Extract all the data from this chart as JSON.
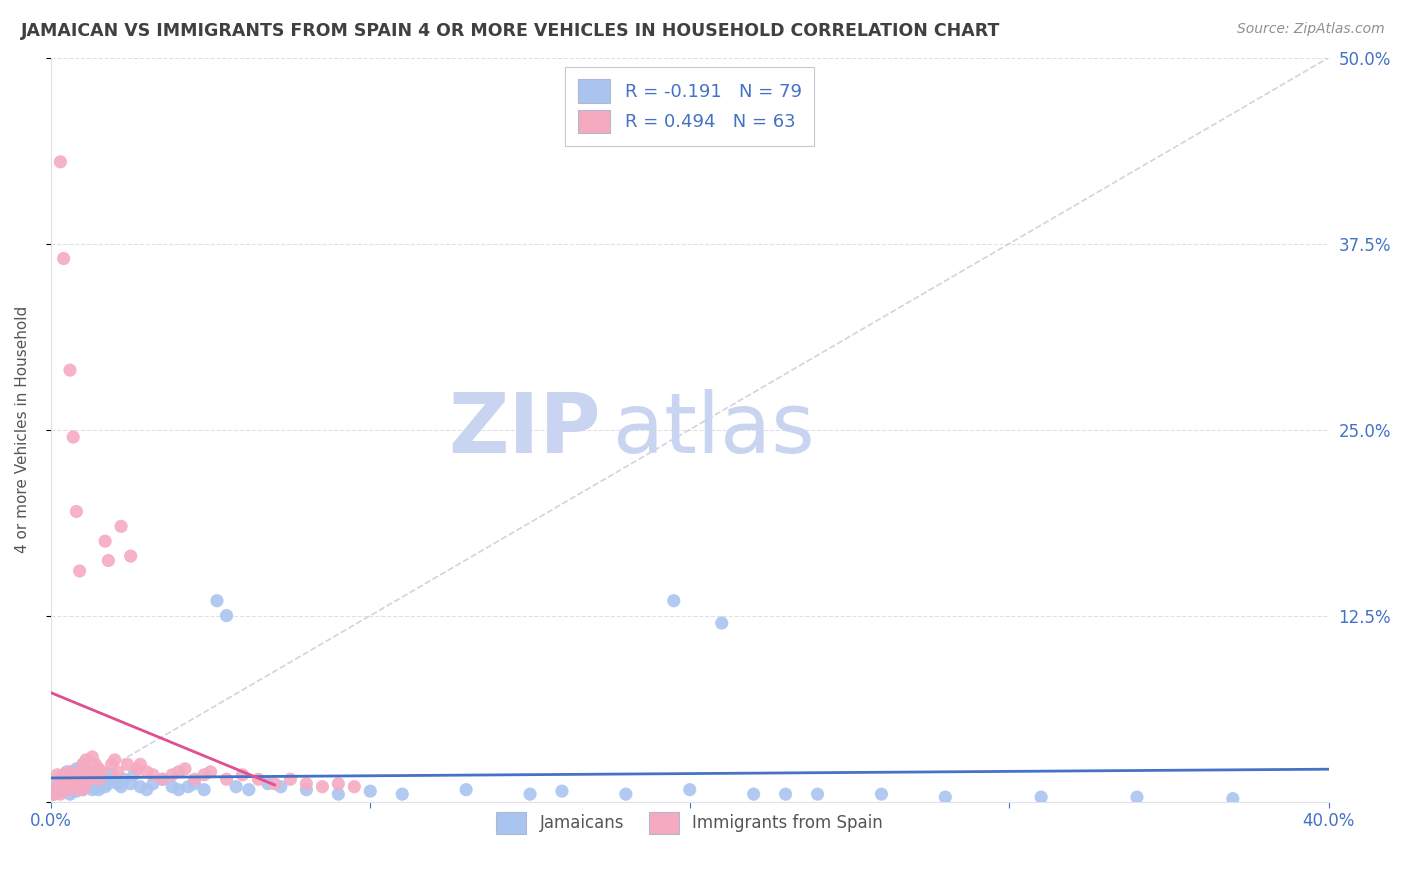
{
  "title": "JAMAICAN VS IMMIGRANTS FROM SPAIN 4 OR MORE VEHICLES IN HOUSEHOLD CORRELATION CHART",
  "source": "Source: ZipAtlas.com",
  "ylabel": "4 or more Vehicles in Household",
  "xlim": [
    0.0,
    0.4
  ],
  "ylim": [
    0.0,
    0.5
  ],
  "x_ticks": [
    0.0,
    0.1,
    0.2,
    0.3,
    0.4
  ],
  "x_tick_labels": [
    "0.0%",
    "",
    "",
    "",
    "40.0%"
  ],
  "y_ticks": [
    0.0,
    0.125,
    0.25,
    0.375,
    0.5
  ],
  "y_tick_labels": [
    "",
    "12.5%",
    "25.0%",
    "37.5%",
    "50.0%"
  ],
  "legend_r1": "R = -0.191",
  "legend_n1": "N = 79",
  "legend_r2": "R = 0.494",
  "legend_n2": "N = 63",
  "legend_label1": "Jamaicans",
  "legend_label2": "Immigrants from Spain",
  "blue_color": "#aac4f0",
  "pink_color": "#f5aac0",
  "blue_line_color": "#4472c4",
  "pink_line_color": "#e05090",
  "diag_color": "#c8c8d8",
  "title_color": "#404040",
  "source_color": "#909090",
  "axis_color": "#4472c4",
  "grid_color": "#e0e0e8",
  "watermark_zip_color": "#c8d4f0",
  "watermark_atlas_color": "#c8d4f0",
  "jamaicans_x": [
    0.001,
    0.002,
    0.002,
    0.003,
    0.003,
    0.004,
    0.004,
    0.004,
    0.005,
    0.005,
    0.005,
    0.006,
    0.006,
    0.006,
    0.007,
    0.007,
    0.007,
    0.008,
    0.008,
    0.008,
    0.009,
    0.009,
    0.01,
    0.01,
    0.01,
    0.011,
    0.011,
    0.012,
    0.012,
    0.013,
    0.013,
    0.014,
    0.014,
    0.015,
    0.015,
    0.016,
    0.017,
    0.018,
    0.019,
    0.02,
    0.021,
    0.022,
    0.023,
    0.025,
    0.026,
    0.028,
    0.03,
    0.032,
    0.035,
    0.038,
    0.04,
    0.043,
    0.045,
    0.048,
    0.052,
    0.055,
    0.058,
    0.062,
    0.068,
    0.072,
    0.08,
    0.09,
    0.1,
    0.11,
    0.13,
    0.15,
    0.16,
    0.18,
    0.2,
    0.22,
    0.24,
    0.26,
    0.28,
    0.31,
    0.34,
    0.37,
    0.195,
    0.21,
    0.23
  ],
  "jamaicans_y": [
    0.005,
    0.008,
    0.012,
    0.01,
    0.015,
    0.007,
    0.012,
    0.018,
    0.008,
    0.015,
    0.02,
    0.005,
    0.01,
    0.018,
    0.008,
    0.012,
    0.02,
    0.007,
    0.015,
    0.022,
    0.01,
    0.018,
    0.008,
    0.015,
    0.025,
    0.01,
    0.018,
    0.012,
    0.02,
    0.008,
    0.015,
    0.01,
    0.018,
    0.008,
    0.012,
    0.015,
    0.01,
    0.012,
    0.018,
    0.015,
    0.012,
    0.01,
    0.015,
    0.012,
    0.018,
    0.01,
    0.008,
    0.012,
    0.015,
    0.01,
    0.008,
    0.01,
    0.012,
    0.008,
    0.135,
    0.125,
    0.01,
    0.008,
    0.012,
    0.01,
    0.008,
    0.005,
    0.007,
    0.005,
    0.008,
    0.005,
    0.007,
    0.005,
    0.008,
    0.005,
    0.005,
    0.005,
    0.003,
    0.003,
    0.003,
    0.002,
    0.135,
    0.12,
    0.005
  ],
  "spain_x": [
    0.001,
    0.002,
    0.002,
    0.003,
    0.003,
    0.004,
    0.004,
    0.005,
    0.005,
    0.006,
    0.006,
    0.007,
    0.007,
    0.008,
    0.008,
    0.009,
    0.01,
    0.01,
    0.011,
    0.012,
    0.012,
    0.013,
    0.014,
    0.015,
    0.015,
    0.016,
    0.017,
    0.018,
    0.019,
    0.02,
    0.021,
    0.022,
    0.024,
    0.025,
    0.027,
    0.028,
    0.03,
    0.032,
    0.035,
    0.038,
    0.04,
    0.042,
    0.045,
    0.048,
    0.05,
    0.055,
    0.06,
    0.065,
    0.07,
    0.075,
    0.08,
    0.085,
    0.09,
    0.095,
    0.01,
    0.011,
    0.013,
    0.003,
    0.004,
    0.006,
    0.007,
    0.008,
    0.009
  ],
  "spain_y": [
    0.005,
    0.01,
    0.018,
    0.005,
    0.012,
    0.01,
    0.018,
    0.008,
    0.015,
    0.012,
    0.02,
    0.008,
    0.015,
    0.01,
    0.018,
    0.015,
    0.008,
    0.02,
    0.012,
    0.015,
    0.02,
    0.018,
    0.025,
    0.015,
    0.022,
    0.02,
    0.175,
    0.162,
    0.025,
    0.028,
    0.02,
    0.185,
    0.025,
    0.165,
    0.022,
    0.025,
    0.02,
    0.018,
    0.015,
    0.018,
    0.02,
    0.022,
    0.015,
    0.018,
    0.02,
    0.015,
    0.018,
    0.015,
    0.012,
    0.015,
    0.012,
    0.01,
    0.012,
    0.01,
    0.025,
    0.028,
    0.03,
    0.43,
    0.365,
    0.29,
    0.245,
    0.195,
    0.155
  ]
}
